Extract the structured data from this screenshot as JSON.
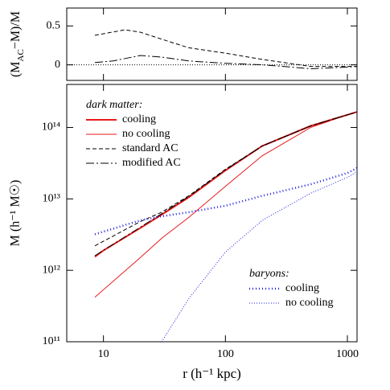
{
  "chart_data": [
    {
      "type": "line",
      "ylabel": [
        "(M",
        "AC",
        "−M)/M"
      ],
      "xscale": "log",
      "xlim": [
        5,
        1200
      ],
      "ylim": [
        -0.2,
        0.73
      ],
      "yticks": [
        0,
        0.5
      ],
      "hline": {
        "value": 0,
        "color": "#000000",
        "dash": "1,2"
      },
      "series": [
        {
          "color": "#000000",
          "width": 1,
          "dash": "5,3",
          "x": [
            8.5,
            15,
            20,
            30,
            50,
            100,
            200,
            300,
            500,
            1000,
            1200
          ],
          "values": [
            0.38,
            0.45,
            0.42,
            0.33,
            0.22,
            0.15,
            0.07,
            0.03,
            -0.02,
            -0.02,
            -0.02
          ]
        },
        {
          "color": "#000000",
          "width": 1,
          "dash": "10,3,2,3",
          "x": [
            8.5,
            12,
            20,
            30,
            50,
            100,
            200,
            300,
            500,
            1000,
            1200
          ],
          "values": [
            0.03,
            0.05,
            0.12,
            0.1,
            0.05,
            0.02,
            0.0,
            -0.02,
            -0.05,
            -0.03,
            -0.02
          ]
        }
      ]
    },
    {
      "type": "line",
      "ylabel": "M (h⁻¹ M☉)",
      "xlabel": "r (h⁻¹ kpc)",
      "xscale": "log",
      "yscale": "log",
      "xlim": [
        5,
        1200
      ],
      "xticks": [
        10,
        100,
        1000
      ],
      "ylim": [
        100000000000.0,
        400000000000000.0
      ],
      "yticks": [
        {
          "value": 100000000000.0,
          "label": "10¹¹"
        },
        {
          "value": 1000000000000.0,
          "label": "10¹²"
        },
        {
          "value": 10000000000000.0,
          "label": "10¹³"
        },
        {
          "value": 100000000000000.0,
          "label": "10¹⁴"
        }
      ],
      "series_groups": [
        {
          "title": "dark matter:",
          "series": [
            {
              "name": "cooling",
              "color": "#e8191b",
              "width": 2,
              "dash": "none",
              "x": [
                8.5,
                10,
                20,
                30,
                50,
                100,
                200,
                500,
                1000,
                1200
              ],
              "values": [
                1550000000000.0,
                1900000000000.0,
                3900000000000.0,
                6000000000000.0,
                10500000000000.0,
                25000000000000.0,
                55000000000000.0,
                105000000000000.0,
                150000000000000.0,
                165000000000000.0
              ]
            },
            {
              "name": "no cooling",
              "color": "#e8191b",
              "width": 1,
              "dash": "none",
              "x": [
                8.5,
                20,
                30,
                50,
                100,
                200,
                500,
                1000,
                1200
              ],
              "values": [
                420000000000.0,
                1500000000000.0,
                2800000000000.0,
                5500000000000.0,
                15000000000000.0,
                40000000000000.0,
                100000000000000.0,
                150000000000000.0,
                165000000000000.0
              ]
            },
            {
              "name": "standard AC",
              "color": "#000000",
              "width": 1,
              "dash": "5,3",
              "x": [
                8.5,
                20,
                30,
                50,
                100,
                200,
                500,
                1000,
                1200
              ],
              "values": [
                2200000000000.0,
                4800000000000.0,
                6500000000000.0,
                11000000000000.0,
                26000000000000.0,
                55000000000000.0,
                105000000000000.0,
                150000000000000.0,
                165000000000000.0
              ]
            },
            {
              "name": "modified AC",
              "color": "#000000",
              "width": 1,
              "dash": "10,3,2,3",
              "x": [
                8.5,
                20,
                30,
                50,
                100,
                200,
                500,
                1000,
                1200
              ],
              "values": [
                1600000000000.0,
                4000000000000.0,
                6200000000000.0,
                10800000000000.0,
                25500000000000.0,
                55000000000000.0,
                105000000000000.0,
                150000000000000.0,
                165000000000000.0
              ]
            }
          ]
        },
        {
          "title": "baryons:",
          "series": [
            {
              "name": "cooling",
              "color": "#2020e0",
              "width": 2.5,
              "dash": "1,3",
              "x": [
                8.5,
                20,
                30,
                50,
                100,
                200,
                500,
                1000,
                1200
              ],
              "values": [
                3200000000000.0,
                5000000000000.0,
                5700000000000.0,
                6500000000000.0,
                8000000000000.0,
                11000000000000.0,
                16000000000000.0,
                23000000000000.0,
                27000000000000.0
              ]
            },
            {
              "name": "no cooling",
              "color": "#2020e0",
              "width": 1,
              "dash": "1,2",
              "x": [
                30,
                50,
                100,
                200,
                500,
                1000,
                1200
              ],
              "values": [
                100000000000.0,
                400000000000.0,
                1800000000000.0,
                5000000000000.0,
                12000000000000.0,
                20000000000000.0,
                24000000000000.0
              ]
            }
          ]
        }
      ]
    }
  ]
}
